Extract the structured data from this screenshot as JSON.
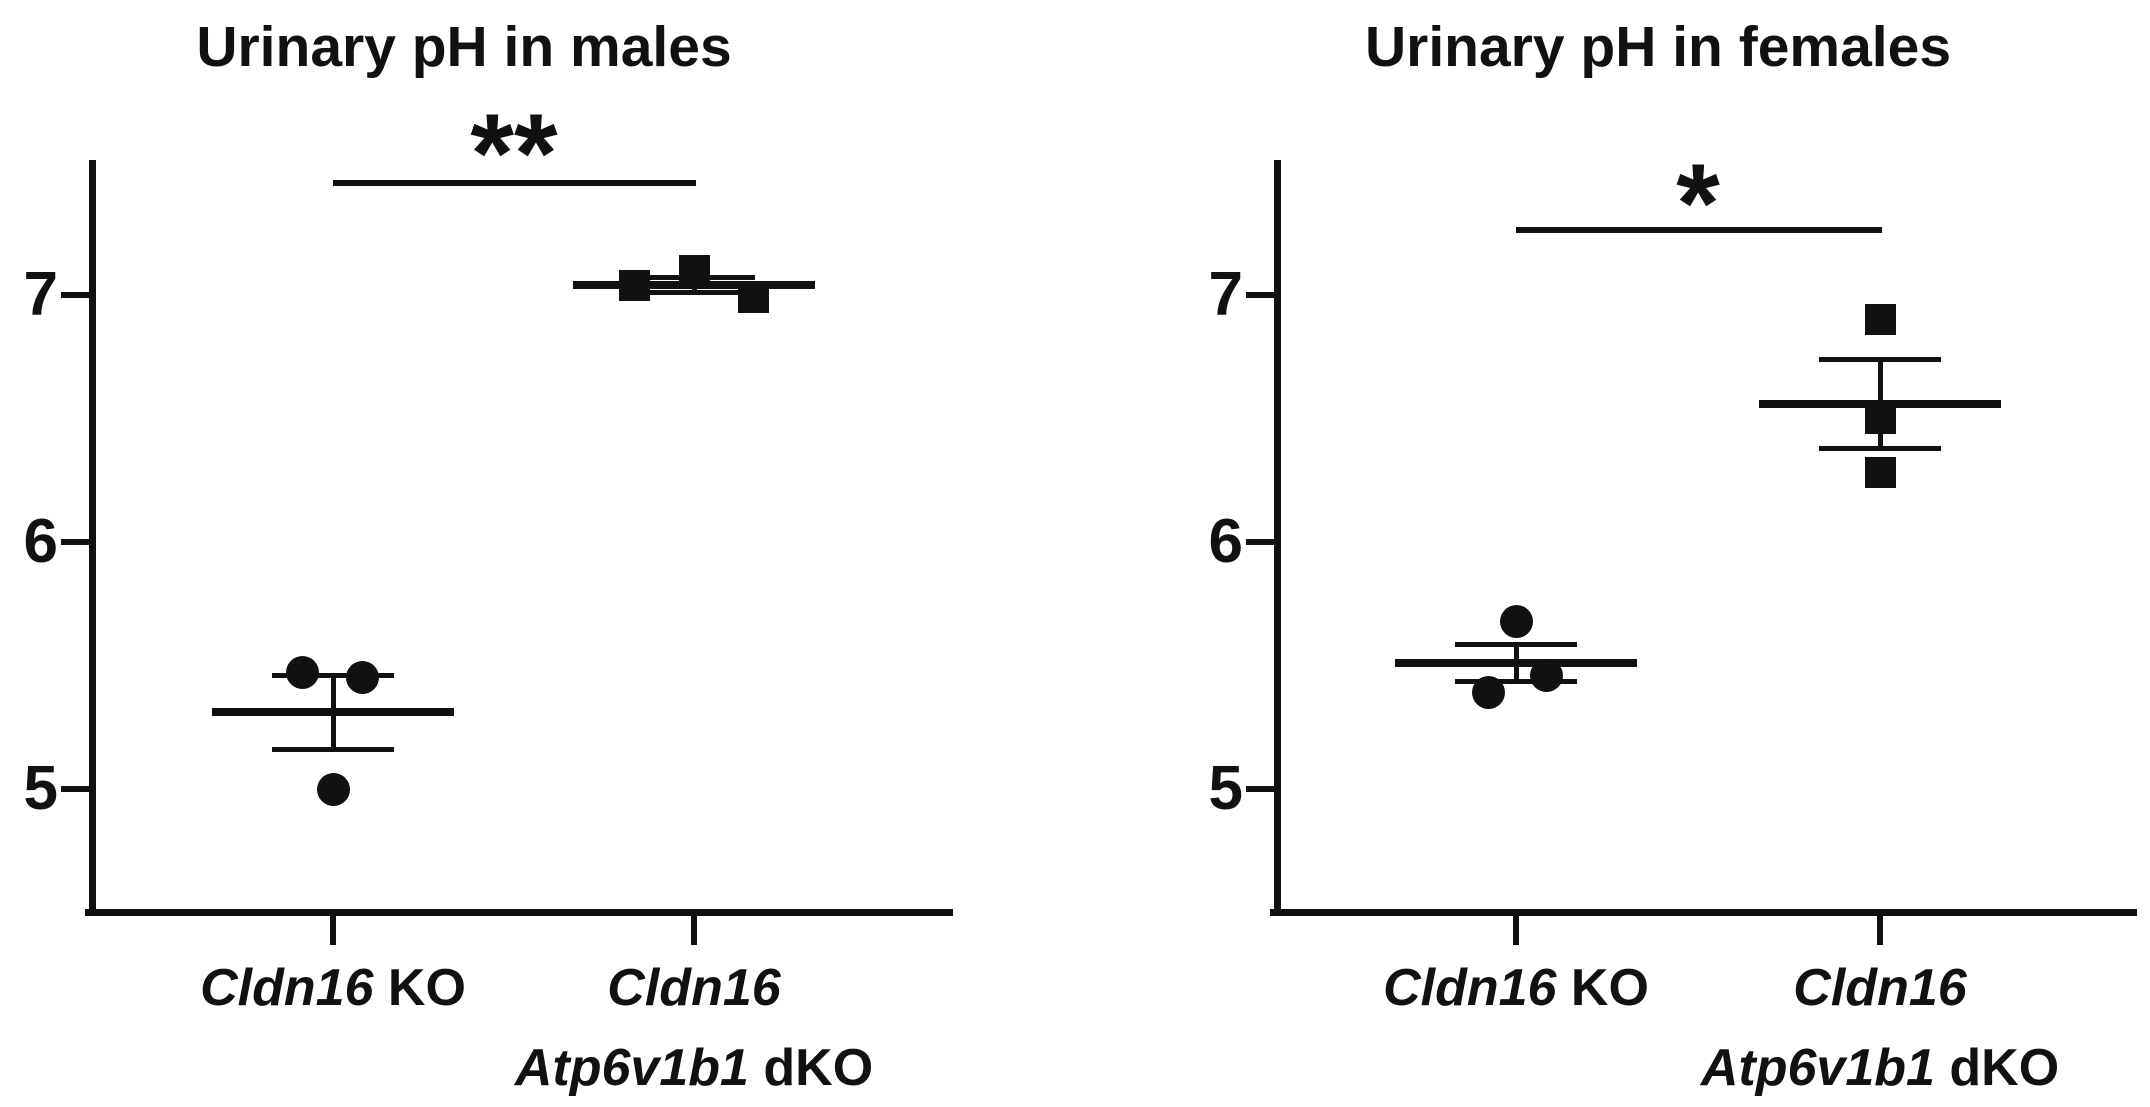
{
  "figure_background": "#ffffff",
  "ink_color": "#111111",
  "chart_data": [
    {
      "type": "scatter",
      "title": "Urinary pH in males",
      "ylabel": "",
      "yticks": [
        5,
        6,
        7
      ],
      "ylim": [
        4.5,
        7.55
      ],
      "grid": false,
      "significance": {
        "label": "**",
        "between": [
          "Cldn16 KO",
          "Cldn16 Atp6v1b1 dKO"
        ]
      },
      "categories": [
        {
          "name": "Cldn16 KO",
          "line1": [
            {
              "t": "Cldn16",
              "i": true
            },
            {
              "t": " KO",
              "i": false
            }
          ],
          "line2": []
        },
        {
          "name": "Cldn16 Atp6v1b1 dKO",
          "line1": [
            {
              "t": "Cldn16",
              "i": true
            }
          ],
          "line2": [
            {
              "t": "Atp6v1b1",
              "i": true
            },
            {
              "t": " dKO",
              "i": false
            }
          ]
        }
      ],
      "groups": [
        {
          "category": "Cldn16 KO",
          "marker": "circle",
          "values": [
            5.47,
            5.45,
            5.0
          ],
          "x_offsets": [
            -31,
            29,
            0
          ],
          "mean": 5.31,
          "sem": 0.15
        },
        {
          "category": "Cldn16 Atp6v1b1 dKO",
          "marker": "square",
          "values": [
            7.04,
            7.1,
            6.99
          ],
          "x_offsets": [
            -60,
            0,
            59
          ],
          "mean": 7.04,
          "sem": 0.03
        }
      ]
    },
    {
      "type": "scatter",
      "title": "Urinary pH in females",
      "ylabel": "",
      "yticks": [
        5,
        6,
        7
      ],
      "ylim": [
        4.5,
        7.55
      ],
      "grid": false,
      "significance": {
        "label": "*",
        "between": [
          "Cldn16 KO",
          "Cldn16 Atp6v1b1 dKO"
        ]
      },
      "categories": [
        {
          "name": "Cldn16 KO",
          "line1": [
            {
              "t": "Cldn16",
              "i": true
            },
            {
              "t": " KO",
              "i": false
            }
          ],
          "line2": []
        },
        {
          "name": "Cldn16 Atp6v1b1 dKO",
          "line1": [
            {
              "t": "Cldn16",
              "i": true
            }
          ],
          "line2": [
            {
              "t": "Atp6v1b1",
              "i": true
            },
            {
              "t": " dKO",
              "i": false
            }
          ]
        }
      ],
      "groups": [
        {
          "category": "Cldn16 KO",
          "marker": "circle",
          "values": [
            5.68,
            5.39,
            5.46
          ],
          "x_offsets": [
            0,
            -28,
            30
          ],
          "mean": 5.51,
          "sem": 0.075
        },
        {
          "category": "Cldn16 Atp6v1b1 dKO",
          "marker": "square",
          "values": [
            6.9,
            6.5,
            6.28
          ],
          "x_offsets": [
            0,
            0,
            0
          ],
          "mean": 6.56,
          "sem": 0.18
        }
      ]
    }
  ]
}
